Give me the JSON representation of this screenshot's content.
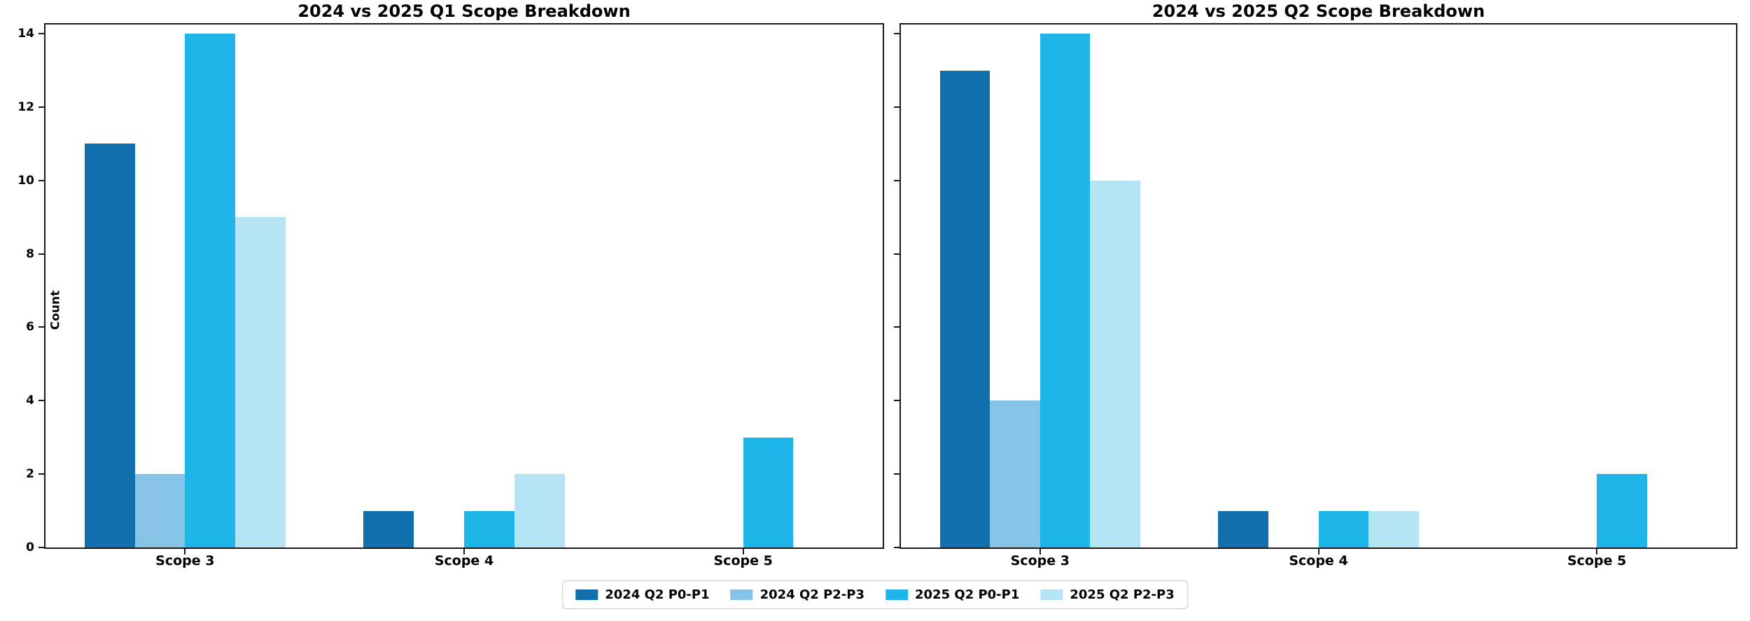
{
  "legend": {
    "items": [
      {
        "label": "2024 Q2 P0-P1",
        "color": "#1170ac"
      },
      {
        "label": "2024 Q2 P2-P3",
        "color": "#86c3e6"
      },
      {
        "label": "2025 Q2 P0-P1",
        "color": "#1eb6e9"
      },
      {
        "label": "2025 Q2 P2-P3",
        "color": "#b5e5f4"
      }
    ],
    "position": "bottom-center"
  },
  "y_axis": {
    "label": "Count",
    "ticks": [
      0,
      2,
      4,
      6,
      8,
      10,
      12,
      14
    ]
  },
  "chart_data": [
    {
      "type": "bar",
      "title": "2024 vs 2025 Q1 Scope Breakdown",
      "categories": [
        "Scope 3",
        "Scope 4",
        "Scope 5"
      ],
      "series": [
        {
          "name": "2024 Q2 P0-P1",
          "color": "#1170ac",
          "values": [
            11,
            1,
            0
          ]
        },
        {
          "name": "2024 Q2 P2-P3",
          "color": "#86c3e6",
          "values": [
            2,
            0,
            0
          ]
        },
        {
          "name": "2025 Q2 P0-P1",
          "color": "#1eb6e9",
          "values": [
            14,
            1,
            3
          ]
        },
        {
          "name": "2025 Q2 P2-P3",
          "color": "#b5e5f4",
          "values": [
            9,
            2,
            0
          ]
        }
      ],
      "xlabel": "",
      "ylabel": "Count",
      "ylim": [
        0,
        14.25
      ],
      "xlim": [
        -0.5,
        2.5
      ],
      "y_ticks": [
        0,
        2,
        4,
        6,
        8,
        10,
        12,
        14
      ],
      "bar_width_frac": 0.18,
      "grid": false,
      "show_y_tick_labels": true
    },
    {
      "type": "bar",
      "title": "2024 vs 2025 Q2 Scope Breakdown",
      "categories": [
        "Scope 3",
        "Scope 4",
        "Scope 5"
      ],
      "series": [
        {
          "name": "2024 Q2 P0-P1",
          "color": "#1170ac",
          "values": [
            13,
            1,
            0
          ]
        },
        {
          "name": "2024 Q2 P2-P3",
          "color": "#86c3e6",
          "values": [
            4,
            0,
            0
          ]
        },
        {
          "name": "2025 Q2 P0-P1",
          "color": "#1eb6e9",
          "values": [
            14,
            1,
            2
          ]
        },
        {
          "name": "2025 Q2 P2-P3",
          "color": "#b5e5f4",
          "values": [
            10,
            1,
            0
          ]
        }
      ],
      "xlabel": "",
      "ylabel": "",
      "ylim": [
        0,
        14.25
      ],
      "xlim": [
        -0.5,
        2.5
      ],
      "y_ticks": [
        0,
        2,
        4,
        6,
        8,
        10,
        12,
        14
      ],
      "bar_width_frac": 0.18,
      "grid": false,
      "show_y_tick_labels": false
    }
  ]
}
